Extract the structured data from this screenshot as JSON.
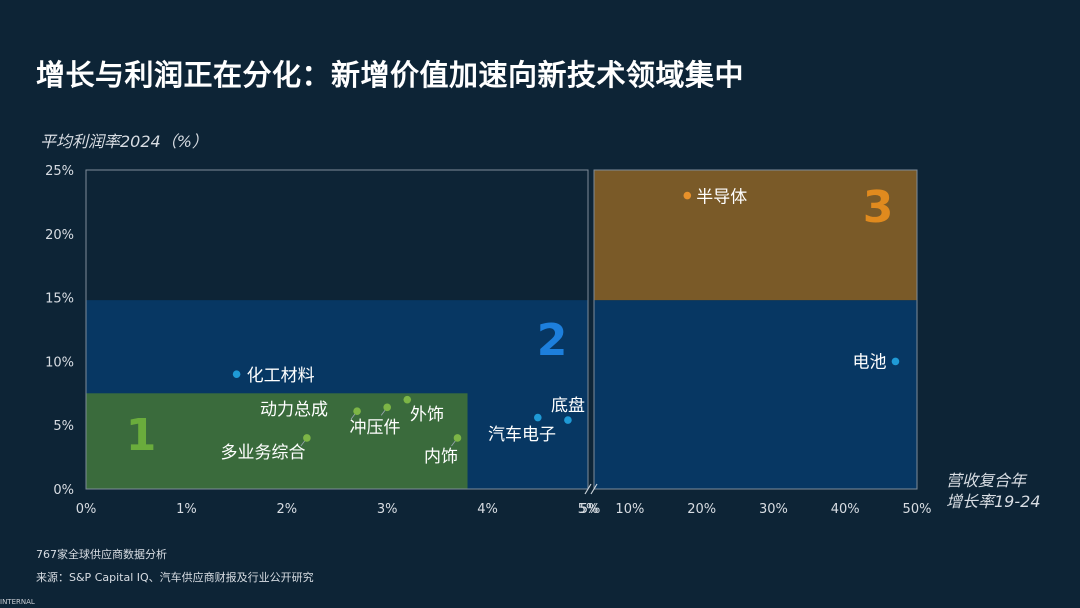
{
  "title": "增长与利润正在分化：新增价值加速向新技术领域集中",
  "y_axis_label": "平均利润率2024（%）",
  "x_axis_label_line1": "营收复合年",
  "x_axis_label_line2": "增长率19-24",
  "note_sample": "767家全球供应商数据分析",
  "note_source": "来源：S&P Capital IQ、汽车供应商财报及行业公开研究",
  "footer_label": "INTERNAL",
  "colors": {
    "background": "#0d2436",
    "zone1": "#3a6b3c",
    "zone2": "#073763",
    "zone3": "#7a5a28",
    "point_blue": "#1f9ad6",
    "point_green": "#7db546",
    "point_orange": "#e8912a",
    "label1": "#6aac3c",
    "label2": "#1d7fdc",
    "label3": "#e08a1e"
  },
  "chart_data": {
    "type": "scatter",
    "xlabel": "营收复合年增长率19-24",
    "ylabel": "平均利润率2024（%）",
    "x_axis_break": true,
    "ylim": [
      0,
      25
    ],
    "yticks": [
      "0%",
      "5%",
      "10%",
      "15%",
      "20%",
      "25%"
    ],
    "left_panel": {
      "xlim": [
        0,
        5
      ],
      "xticks": [
        "0%",
        "1%",
        "2%",
        "3%",
        "4%",
        "5%"
      ]
    },
    "right_panel": {
      "xlim": [
        5,
        50
      ],
      "xticks": [
        "5%",
        "10%",
        "20%",
        "30%",
        "40%",
        "50%"
      ]
    },
    "zones": [
      {
        "label": "1",
        "x_range": [
          0,
          3.8
        ],
        "y_range": [
          0,
          7.5
        ],
        "color": "zone1"
      },
      {
        "label": "2",
        "x_range": [
          0,
          50
        ],
        "y_range": [
          0,
          14.8
        ],
        "color": "zone2"
      },
      {
        "label": "3",
        "x_range": [
          5,
          50
        ],
        "y_range": [
          14.8,
          25
        ],
        "color": "zone3"
      }
    ],
    "points": [
      {
        "name": "化工材料",
        "x": 1.5,
        "y": 9.0,
        "group": "blue"
      },
      {
        "name": "动力总成",
        "x": 2.7,
        "y": 6.1,
        "group": "green"
      },
      {
        "name": "冲压件",
        "x": 3.0,
        "y": 6.4,
        "group": "green"
      },
      {
        "name": "外饰",
        "x": 3.2,
        "y": 7.0,
        "group": "green"
      },
      {
        "name": "多业务综合",
        "x": 2.2,
        "y": 4.0,
        "group": "green"
      },
      {
        "name": "内饰",
        "x": 3.7,
        "y": 4.0,
        "group": "green"
      },
      {
        "name": "汽车电子",
        "x": 4.5,
        "y": 5.6,
        "group": "blue"
      },
      {
        "name": "底盘",
        "x": 4.8,
        "y": 5.4,
        "group": "blue"
      },
      {
        "name": "半导体",
        "x": 18,
        "y": 23,
        "group": "orange"
      },
      {
        "name": "电池",
        "x": 47,
        "y": 10,
        "group": "blue"
      }
    ]
  }
}
